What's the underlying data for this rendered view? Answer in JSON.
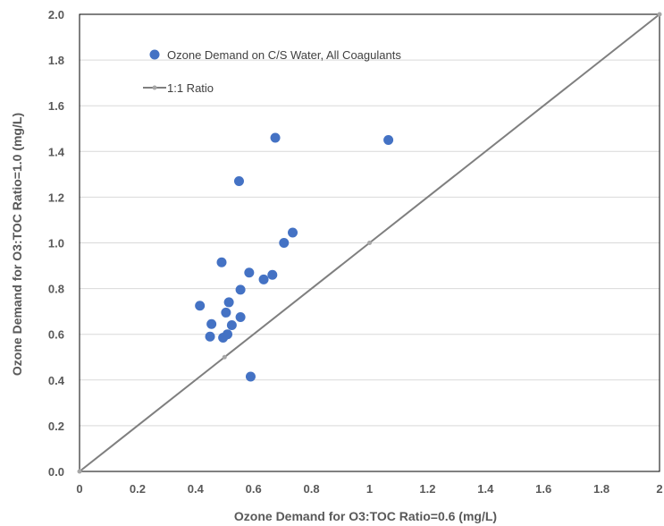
{
  "chart_data": {
    "type": "scatter",
    "xlabel": "Ozone Demand for O3:TOC Ratio=0.6 (mg/L)",
    "ylabel": "Ozone Demand for O3:TOC Ratio=1.0 (mg/L)",
    "xlim": [
      0,
      2
    ],
    "ylim": [
      0,
      2
    ],
    "x_ticks": [
      0,
      0.2,
      0.4,
      0.6,
      0.8,
      1,
      1.2,
      1.4,
      1.6,
      1.8,
      2
    ],
    "x_tick_labels": [
      "0",
      "0.2",
      "0.4",
      "0.6",
      "0.8",
      "1",
      "1.2",
      "1.4",
      "1.6",
      "1.8",
      "2"
    ],
    "y_ticks": [
      0,
      0.2,
      0.4,
      0.6,
      0.8,
      1,
      1.2,
      1.4,
      1.6,
      1.8,
      2
    ],
    "y_tick_labels": [
      "0.0",
      "0.2",
      "0.4",
      "0.6",
      "0.8",
      "1.0",
      "1.2",
      "1.4",
      "1.6",
      "1.8",
      "2.0"
    ],
    "grid": "horizontal",
    "legend_position": "top-left",
    "series": [
      {
        "name": "Ozone Demand on C/S Water, All Coagulants",
        "kind": "scatter",
        "color": "#4472C4",
        "x": [
          0.415,
          0.45,
          0.455,
          0.49,
          0.495,
          0.505,
          0.51,
          0.515,
          0.525,
          0.55,
          0.555,
          0.555,
          0.585,
          0.59,
          0.635,
          0.665,
          0.675,
          0.705,
          0.735,
          1.065
        ],
        "y": [
          0.725,
          0.59,
          0.645,
          0.915,
          0.585,
          0.695,
          0.6,
          0.74,
          0.64,
          1.27,
          0.795,
          0.675,
          0.87,
          0.415,
          0.84,
          0.86,
          1.46,
          1.0,
          1.045,
          1.45
        ]
      },
      {
        "name": "1:1 Ratio",
        "kind": "line",
        "color": "#7F7F7F",
        "x": [
          0,
          0.5,
          1,
          2
        ],
        "y": [
          0,
          0.5,
          1,
          2
        ]
      }
    ]
  }
}
